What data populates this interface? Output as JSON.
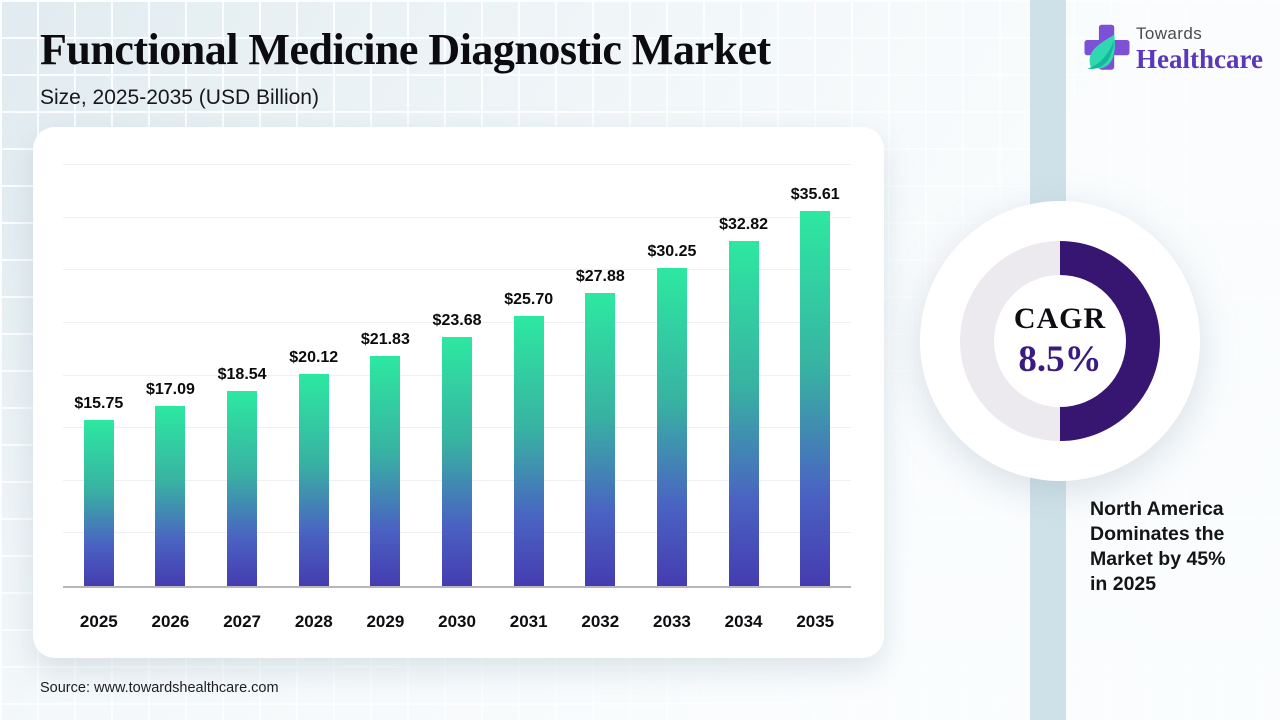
{
  "page": {
    "header": {
      "title": "Functional Medicine Diagnostic Market",
      "subtitle": "Size, 2025-2035 (USD Billion)"
    },
    "logo": {
      "name_top": "Towards",
      "name_bottom": "Healthcare",
      "cross_color": "#7d50d6",
      "leaf_color": "#2fd8b0"
    },
    "callout": "North America Dominates the Market by 45% in 2025",
    "source": "Source: www.towardshealthcare.com"
  },
  "cagr": {
    "label": "CAGR",
    "value": "8.5%",
    "percent": 50,
    "arc_color": "#371672",
    "track_color": "#eceaef"
  },
  "chart_data": {
    "type": "bar",
    "title": "Functional Medicine Diagnostic Market",
    "subtitle": "Size, 2025-2035 (USD Billion)",
    "categories": [
      "2025",
      "2026",
      "2027",
      "2028",
      "2029",
      "2030",
      "2031",
      "2032",
      "2033",
      "2034",
      "2035"
    ],
    "values": [
      15.75,
      17.09,
      18.54,
      20.12,
      21.83,
      23.68,
      25.7,
      27.88,
      30.25,
      32.82,
      35.61
    ],
    "value_labels": [
      "$15.75",
      "$17.09",
      "$18.54",
      "$20.12",
      "$21.83",
      "$23.68",
      "$25.70",
      "$27.88",
      "$30.25",
      "$32.82",
      "$35.61"
    ],
    "xlabel": "",
    "ylabel": "",
    "ylim": [
      0,
      40
    ],
    "gridline_step": 5,
    "grid": true,
    "legend": false,
    "bar_gradient": [
      "#2de8a1",
      "#38b2a2",
      "#4a63c2",
      "#453cb0"
    ]
  }
}
